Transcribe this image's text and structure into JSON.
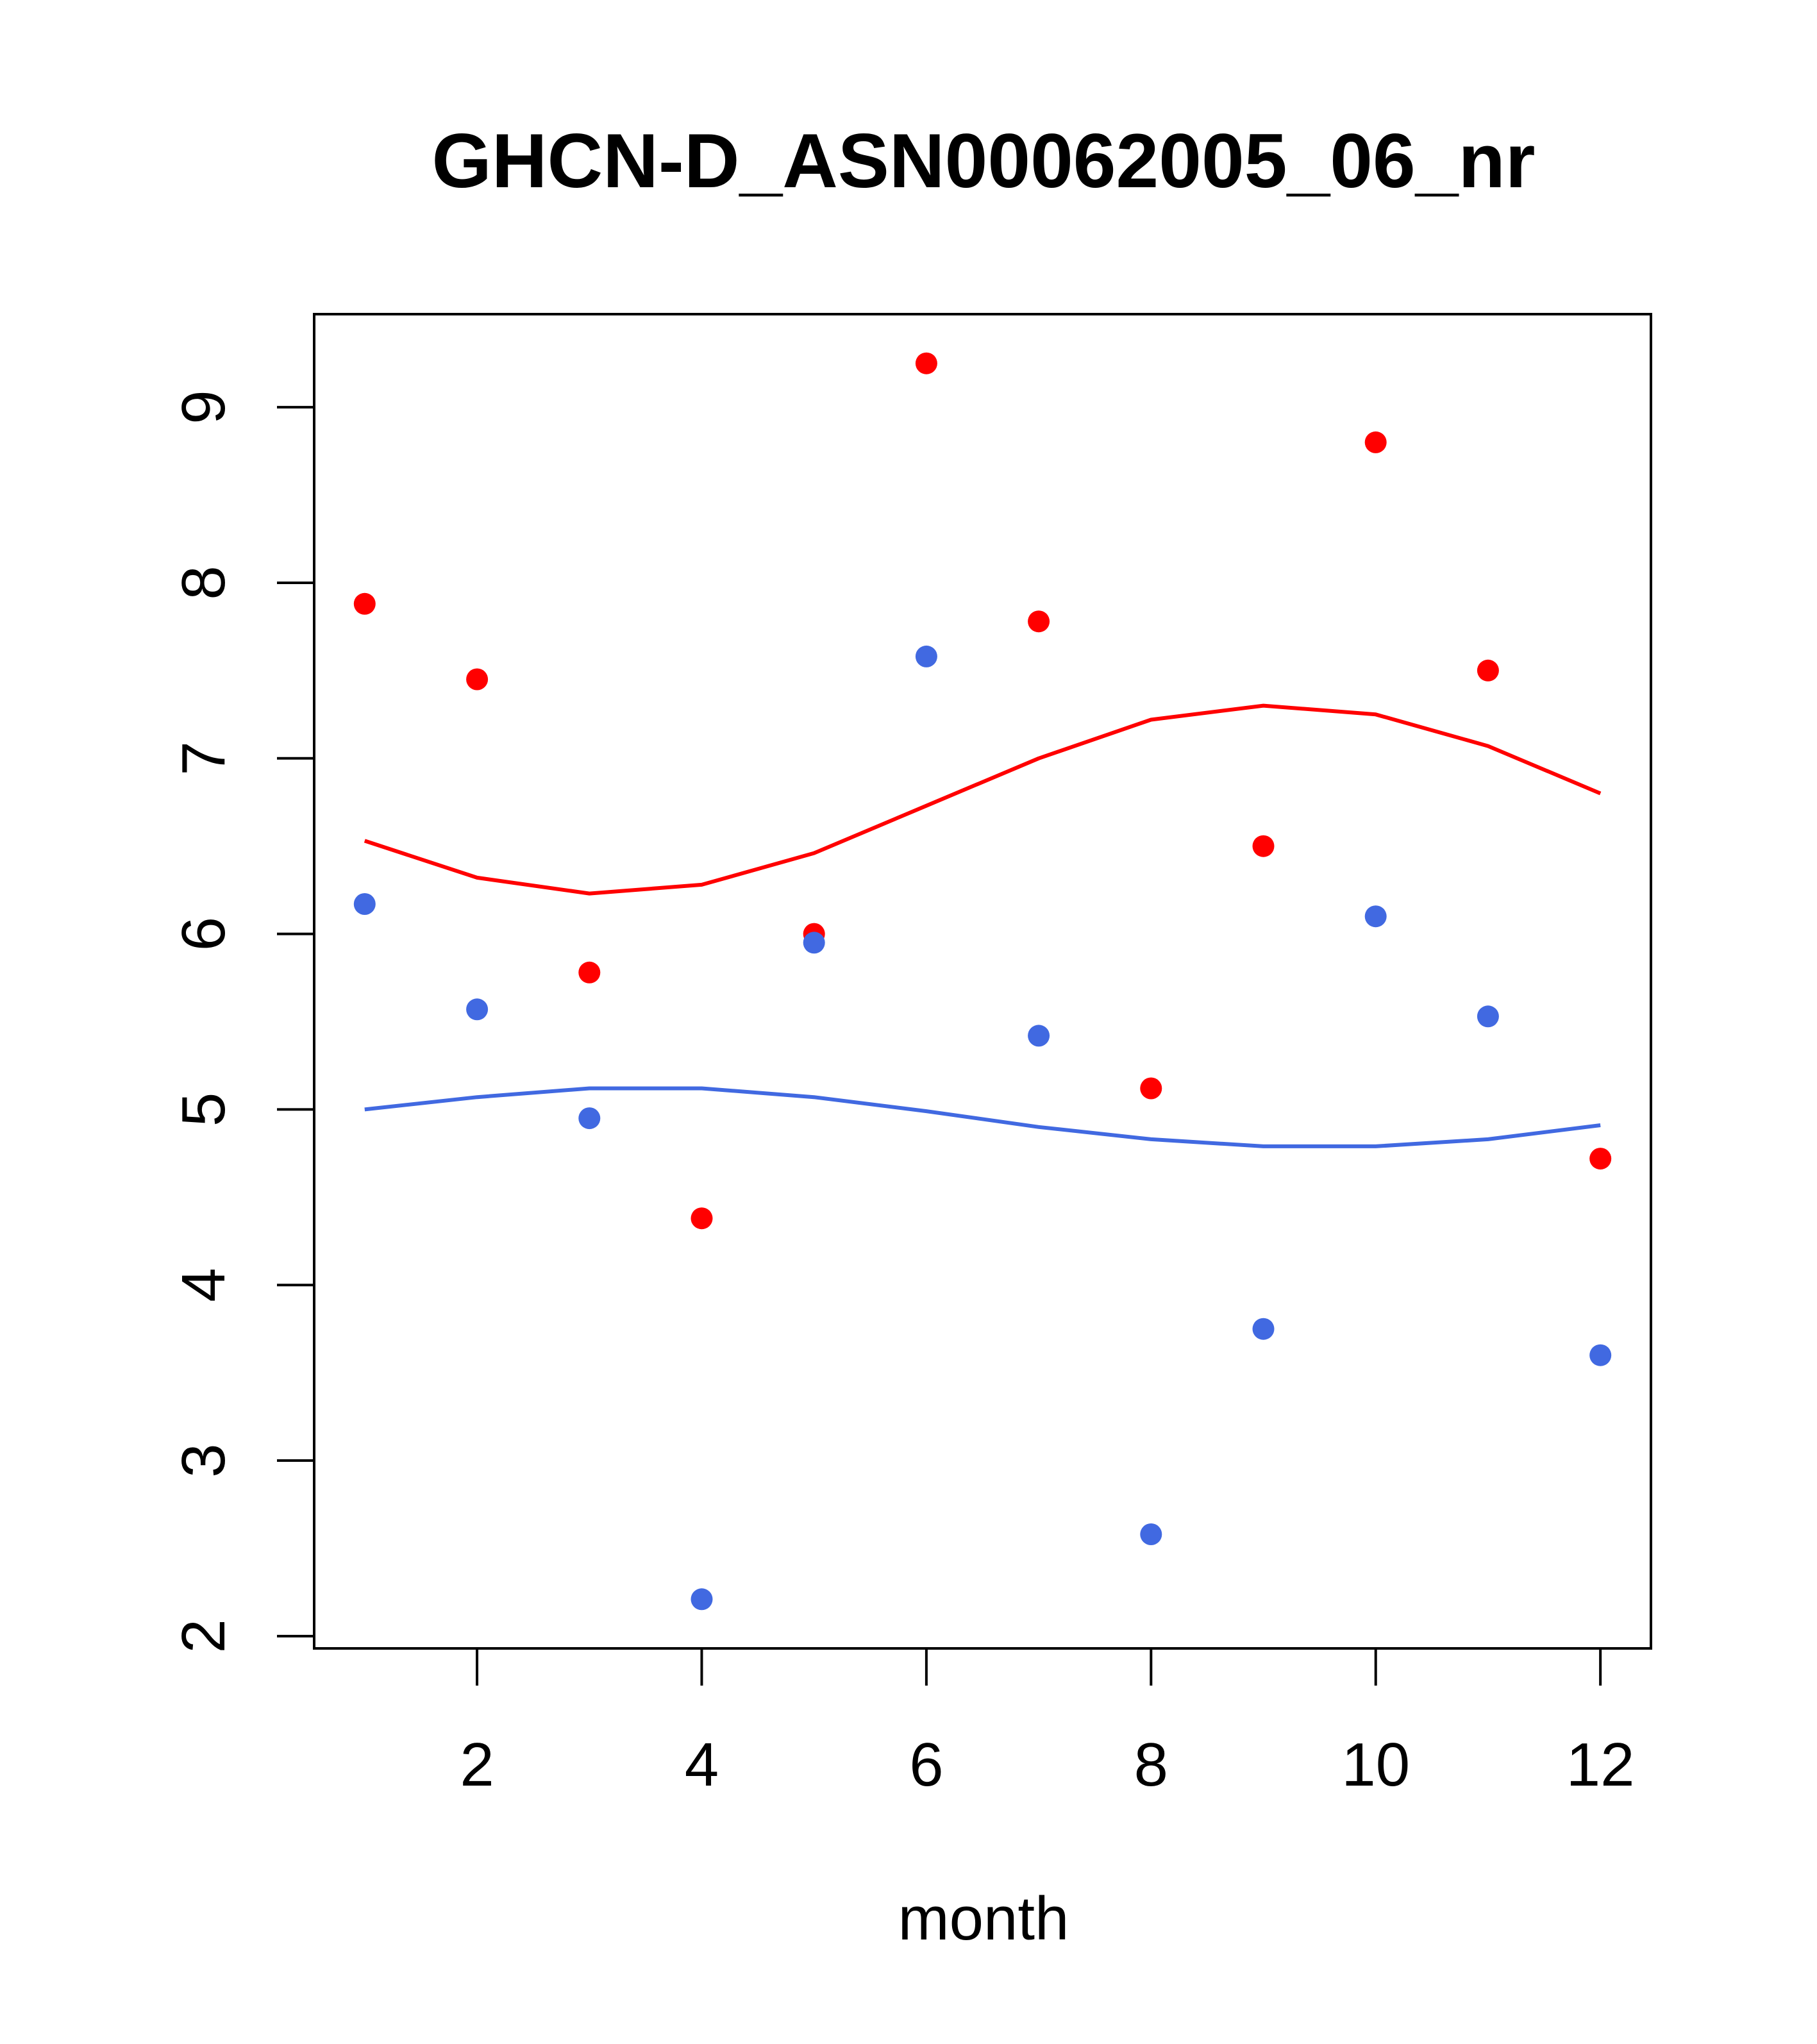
{
  "chart_data": {
    "type": "scatter",
    "title": "GHCN-D_ASN00062005_06_nr",
    "xlabel": "month",
    "ylabel": "",
    "xlim": [
      0.55,
      12.45
    ],
    "ylim": [
      1.93,
      9.53
    ],
    "x_ticks": [
      2,
      4,
      6,
      8,
      10,
      12
    ],
    "y_ticks": [
      2,
      3,
      4,
      5,
      6,
      7,
      8,
      9
    ],
    "grid": false,
    "legend": "none",
    "series": [
      {
        "mark": "points",
        "color": "#FF0000",
        "x": [
          1,
          2,
          3,
          4,
          5,
          6,
          7,
          8,
          9,
          10,
          11,
          12
        ],
        "y": [
          7.88,
          7.45,
          5.78,
          4.38,
          6.0,
          9.25,
          7.78,
          5.12,
          6.5,
          8.8,
          7.5,
          4.72
        ]
      },
      {
        "mark": "points",
        "color": "#4169E1",
        "x": [
          1,
          2,
          3,
          4,
          5,
          6,
          7,
          8,
          9,
          10,
          11,
          12
        ],
        "y": [
          6.17,
          5.57,
          4.95,
          2.21,
          5.95,
          7.58,
          5.42,
          2.58,
          3.75,
          6.1,
          5.53,
          3.6
        ]
      },
      {
        "mark": "line",
        "color": "#FF0000",
        "x": [
          1,
          2,
          3,
          4,
          5,
          6,
          7,
          8,
          9,
          10,
          11,
          12
        ],
        "y": [
          6.53,
          6.32,
          6.23,
          6.28,
          6.46,
          6.73,
          7.0,
          7.22,
          7.3,
          7.25,
          7.07,
          6.8
        ]
      },
      {
        "mark": "line",
        "color": "#4169E1",
        "x": [
          1,
          2,
          3,
          4,
          5,
          6,
          7,
          8,
          9,
          10,
          11,
          12
        ],
        "y": [
          5.0,
          5.07,
          5.12,
          5.12,
          5.07,
          4.99,
          4.9,
          4.83,
          4.79,
          4.79,
          4.83,
          4.91
        ]
      }
    ]
  }
}
